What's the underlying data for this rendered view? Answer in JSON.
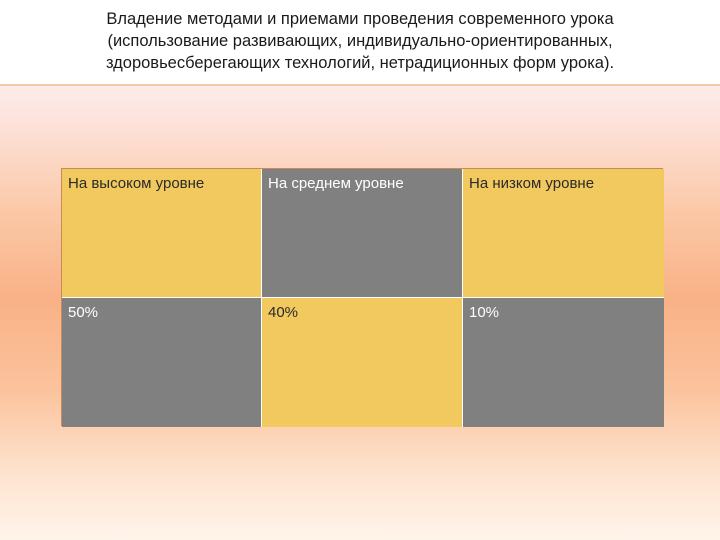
{
  "title": {
    "line1": "Владение методами и приемами проведения современного урока",
    "line2": "(использование развивающих, индивидуально-ориентированных,",
    "line3": "здоровьесберегающих  технологий, нетрадиционных форм урока)."
  },
  "table": {
    "headers": [
      "На высоком уровне",
      "На среднем уровне",
      "На низком уровне"
    ],
    "values": [
      "50%",
      "40%",
      "10%"
    ]
  },
  "colors": {
    "yellow": "#f2c95e",
    "gray": "#808080"
  }
}
